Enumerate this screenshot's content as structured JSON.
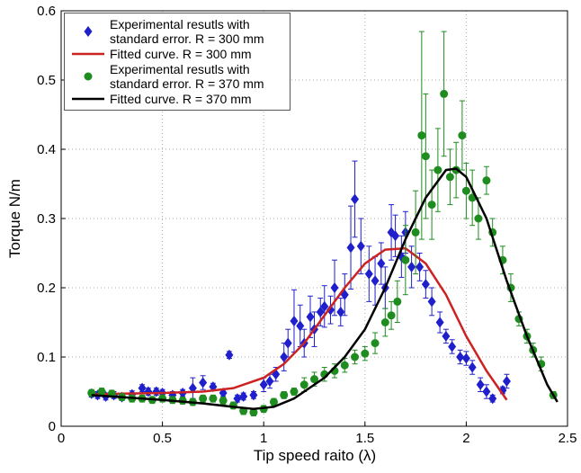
{
  "chart_data": {
    "type": "scatter",
    "x_label": "Tip speed raito (λ)",
    "y_label": "Torque N/m",
    "xlim": [
      0,
      2.5
    ],
    "ylim": [
      0,
      0.6
    ],
    "xticks": [
      0,
      0.5,
      1,
      1.5,
      2,
      2.5
    ],
    "yticks": [
      0,
      0.1,
      0.2,
      0.3,
      0.4,
      0.5,
      0.6
    ],
    "grid": true,
    "legend_position": "upper left",
    "series": [
      {
        "name": "Experimental resutls with standard error. R = 300 mm",
        "color": "#1f1fcc",
        "mode": "markers",
        "marker": "diamond",
        "x": [
          0.15,
          0.18,
          0.22,
          0.26,
          0.3,
          0.35,
          0.4,
          0.43,
          0.47,
          0.5,
          0.55,
          0.6,
          0.65,
          0.7,
          0.75,
          0.8,
          0.83,
          0.87,
          0.9,
          0.95,
          1.0,
          1.03,
          1.06,
          1.1,
          1.12,
          1.15,
          1.18,
          1.2,
          1.23,
          1.25,
          1.28,
          1.3,
          1.33,
          1.35,
          1.38,
          1.4,
          1.43,
          1.45,
          1.48,
          1.52,
          1.55,
          1.58,
          1.6,
          1.63,
          1.65,
          1.68,
          1.7,
          1.73,
          1.77,
          1.8,
          1.83,
          1.87,
          1.9,
          1.93,
          1.97,
          2.0,
          2.03,
          2.07,
          2.1,
          2.13,
          2.18,
          2.2
        ],
        "values": [
          0.047,
          0.045,
          0.043,
          0.045,
          0.042,
          0.046,
          0.055,
          0.05,
          0.05,
          0.048,
          0.045,
          0.048,
          0.055,
          0.063,
          0.057,
          0.048,
          0.103,
          0.04,
          0.043,
          0.045,
          0.06,
          0.065,
          0.075,
          0.1,
          0.12,
          0.152,
          0.145,
          0.12,
          0.158,
          0.14,
          0.165,
          0.173,
          0.168,
          0.2,
          0.165,
          0.19,
          0.258,
          0.328,
          0.26,
          0.22,
          0.21,
          0.235,
          0.2,
          0.28,
          0.275,
          0.245,
          0.28,
          0.23,
          0.23,
          0.205,
          0.18,
          0.15,
          0.13,
          0.115,
          0.1,
          0.098,
          0.085,
          0.06,
          0.05,
          0.04,
          0.052,
          0.065
        ],
        "errors": [
          0.005,
          0.005,
          0.005,
          0.005,
          0.005,
          0.005,
          0.005,
          0.005,
          0.005,
          0.005,
          0.005,
          0.005,
          0.015,
          0.01,
          0.005,
          0.005,
          0.005,
          0.005,
          0.005,
          0.005,
          0.01,
          0.01,
          0.01,
          0.02,
          0.02,
          0.045,
          0.03,
          0.02,
          0.03,
          0.025,
          0.02,
          0.03,
          0.02,
          0.04,
          0.02,
          0.03,
          0.06,
          0.055,
          0.04,
          0.04,
          0.035,
          0.03,
          0.03,
          0.04,
          0.03,
          0.03,
          0.03,
          0.03,
          0.02,
          0.02,
          0.02,
          0.015,
          0.01,
          0.01,
          0.01,
          0.01,
          0.01,
          0.01,
          0.01,
          0.005,
          0.005,
          0.01
        ]
      },
      {
        "name": "Fitted curve. R = 300 mm",
        "color": "#cc2222",
        "mode": "line",
        "x": [
          0.15,
          0.3,
          0.5,
          0.7,
          0.85,
          1.0,
          1.1,
          1.2,
          1.3,
          1.4,
          1.5,
          1.6,
          1.7,
          1.8,
          1.9,
          2.0,
          2.1,
          2.2
        ],
        "values": [
          0.046,
          0.047,
          0.048,
          0.05,
          0.055,
          0.07,
          0.09,
          0.12,
          0.16,
          0.2,
          0.235,
          0.255,
          0.257,
          0.235,
          0.19,
          0.13,
          0.08,
          0.038
        ]
      },
      {
        "name": "Experimental resutls with standard error. R = 370 mm",
        "color": "#1e8c1e",
        "mode": "markers",
        "marker": "circle",
        "x": [
          0.15,
          0.2,
          0.25,
          0.3,
          0.35,
          0.4,
          0.45,
          0.5,
          0.55,
          0.6,
          0.65,
          0.7,
          0.75,
          0.8,
          0.85,
          0.9,
          0.95,
          1.0,
          1.05,
          1.1,
          1.15,
          1.2,
          1.25,
          1.3,
          1.35,
          1.4,
          1.45,
          1.5,
          1.55,
          1.6,
          1.63,
          1.66,
          1.7,
          1.75,
          1.78,
          1.8,
          1.83,
          1.86,
          1.89,
          1.92,
          1.95,
          1.98,
          2.0,
          2.03,
          2.06,
          2.1,
          2.13,
          2.18,
          2.22,
          2.26,
          2.3,
          2.33,
          2.37,
          2.43
        ],
        "values": [
          0.048,
          0.05,
          0.047,
          0.042,
          0.04,
          0.04,
          0.038,
          0.04,
          0.038,
          0.037,
          0.035,
          0.04,
          0.04,
          0.037,
          0.03,
          0.022,
          0.02,
          0.025,
          0.035,
          0.045,
          0.05,
          0.06,
          0.068,
          0.075,
          0.08,
          0.088,
          0.1,
          0.105,
          0.12,
          0.15,
          0.16,
          0.18,
          0.24,
          0.28,
          0.42,
          0.39,
          0.32,
          0.37,
          0.48,
          0.36,
          0.37,
          0.42,
          0.34,
          0.33,
          0.3,
          0.355,
          0.28,
          0.24,
          0.2,
          0.155,
          0.13,
          0.11,
          0.09,
          0.045
        ],
        "errors": [
          0.005,
          0.005,
          0.005,
          0.005,
          0.005,
          0.005,
          0.005,
          0.005,
          0.005,
          0.005,
          0.005,
          0.005,
          0.005,
          0.005,
          0.005,
          0.005,
          0.005,
          0.005,
          0.005,
          0.005,
          0.005,
          0.01,
          0.01,
          0.01,
          0.01,
          0.01,
          0.01,
          0.01,
          0.015,
          0.02,
          0.02,
          0.03,
          0.05,
          0.06,
          0.15,
          0.09,
          0.05,
          0.06,
          0.09,
          0.04,
          0.04,
          0.05,
          0.04,
          0.04,
          0.03,
          0.02,
          0.02,
          0.02,
          0.02,
          0.01,
          0.01,
          0.01,
          0.01,
          0.005
        ]
      },
      {
        "name": "Fitted curve. R = 370 mm",
        "color": "#000000",
        "mode": "line",
        "x": [
          0.15,
          0.3,
          0.5,
          0.7,
          0.85,
          0.95,
          1.05,
          1.15,
          1.3,
          1.4,
          1.5,
          1.6,
          1.7,
          1.8,
          1.9,
          1.95,
          2.0,
          2.1,
          2.2,
          2.3,
          2.4,
          2.45
        ],
        "values": [
          0.045,
          0.042,
          0.038,
          0.033,
          0.028,
          0.025,
          0.028,
          0.04,
          0.07,
          0.1,
          0.14,
          0.2,
          0.27,
          0.33,
          0.37,
          0.372,
          0.36,
          0.3,
          0.21,
          0.13,
          0.06,
          0.035
        ]
      }
    ]
  }
}
